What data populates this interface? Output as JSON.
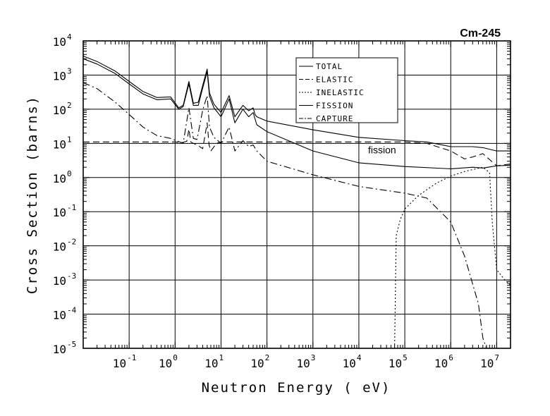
{
  "chart_data": {
    "type": "line",
    "title": "Cm-245",
    "xlabel": "Neutron Energy ( eV)",
    "ylabel": "Cross Section (barns)",
    "x_scale": "log",
    "y_scale": "log",
    "xlim": [
      0.01,
      20000000
    ],
    "ylim": [
      1e-05,
      10000
    ],
    "grid": true,
    "legend_position": "top-center",
    "x_ticks": [
      {
        "base": "10",
        "exp": "-1"
      },
      {
        "base": "10",
        "exp": "0"
      },
      {
        "base": "10",
        "exp": "1"
      },
      {
        "base": "10",
        "exp": "2"
      },
      {
        "base": "10",
        "exp": "3"
      },
      {
        "base": "10",
        "exp": "4"
      },
      {
        "base": "10",
        "exp": "5"
      },
      {
        "base": "10",
        "exp": "6"
      },
      {
        "base": "10",
        "exp": "7"
      }
    ],
    "y_ticks": [
      {
        "base": "10",
        "exp": "4"
      },
      {
        "base": "10",
        "exp": "3"
      },
      {
        "base": "10",
        "exp": "2"
      },
      {
        "base": "10",
        "exp": "1"
      },
      {
        "base": "10",
        "exp": "0"
      },
      {
        "base": "10",
        "exp": "-1"
      },
      {
        "base": "10",
        "exp": "-2"
      },
      {
        "base": "10",
        "exp": "-3"
      },
      {
        "base": "10",
        "exp": "-4"
      },
      {
        "base": "10",
        "exp": "-5"
      }
    ],
    "annotations": [
      {
        "text": "fission",
        "x": 30000,
        "y": 6.5
      }
    ],
    "series": [
      {
        "name": "TOTAL",
        "style": "solid",
        "points": [
          [
            0.01,
            3600
          ],
          [
            0.02,
            2500
          ],
          [
            0.05,
            1300
          ],
          [
            0.1,
            650
          ],
          [
            0.2,
            330
          ],
          [
            0.4,
            220
          ],
          [
            0.8,
            230
          ],
          [
            1.2,
            110
          ],
          [
            1.5,
            130
          ],
          [
            2,
            650
          ],
          [
            2.5,
            150
          ],
          [
            3.2,
            160
          ],
          [
            4,
            500
          ],
          [
            5,
            1500
          ],
          [
            5.6,
            300
          ],
          [
            7,
            140
          ],
          [
            10,
            80
          ],
          [
            15,
            250
          ],
          [
            20,
            60
          ],
          [
            30,
            130
          ],
          [
            40,
            90
          ],
          [
            50,
            110
          ],
          [
            55,
            70
          ],
          [
            60,
            60
          ],
          [
            100,
            45
          ],
          [
            1000,
            25
          ],
          [
            10000,
            15
          ],
          [
            100000,
            12
          ],
          [
            300000,
            11
          ],
          [
            1000000,
            8
          ],
          [
            3000000,
            8
          ],
          [
            5000000,
            7.5
          ],
          [
            10000000,
            6
          ],
          [
            20000000,
            6
          ]
        ]
      },
      {
        "name": "ELASTIC",
        "style": "dashed",
        "points": [
          [
            0.01,
            11
          ],
          [
            0.1,
            11
          ],
          [
            1,
            11
          ],
          [
            1.4,
            10.5
          ],
          [
            1.8,
            11.5
          ],
          [
            2,
            26
          ],
          [
            2.2,
            11
          ],
          [
            2.5,
            10
          ],
          [
            3,
            9
          ],
          [
            4,
            7
          ],
          [
            5,
            40
          ],
          [
            5.5,
            9
          ],
          [
            6,
            6
          ],
          [
            8,
            10
          ],
          [
            10,
            11
          ],
          [
            100,
            11
          ],
          [
            1000,
            11
          ],
          [
            10000,
            11
          ],
          [
            100000,
            11
          ],
          [
            300000,
            10
          ],
          [
            1000000,
            6
          ],
          [
            2000000,
            3.5
          ],
          [
            3000000,
            4
          ],
          [
            5000000,
            5
          ],
          [
            10000000,
            2.2
          ],
          [
            20000000,
            2.5
          ]
        ]
      },
      {
        "name": "INELASTIC",
        "style": "dotted",
        "points": [
          [
            60000,
            1e-05
          ],
          [
            65000,
            0.02
          ],
          [
            80000,
            0.06
          ],
          [
            100000,
            0.12
          ],
          [
            200000,
            0.3
          ],
          [
            500000,
            0.7
          ],
          [
            1000000,
            1.1
          ],
          [
            2000000,
            1.5
          ],
          [
            5000000,
            2
          ],
          [
            7000000,
            1.4
          ],
          [
            8000000,
            0.05
          ],
          [
            10000000,
            0.002
          ],
          [
            15000000,
            0.001
          ],
          [
            20000000,
            0.0007
          ]
        ]
      },
      {
        "name": "FISSION",
        "style": "solid",
        "points": [
          [
            0.01,
            3000
          ],
          [
            0.02,
            2100
          ],
          [
            0.05,
            1100
          ],
          [
            0.1,
            550
          ],
          [
            0.2,
            280
          ],
          [
            0.4,
            190
          ],
          [
            0.8,
            200
          ],
          [
            1.2,
            100
          ],
          [
            1.5,
            120
          ],
          [
            2,
            550
          ],
          [
            2.5,
            130
          ],
          [
            3.2,
            130
          ],
          [
            4,
            420
          ],
          [
            5,
            1250
          ],
          [
            5.6,
            240
          ],
          [
            7,
            110
          ],
          [
            10,
            60
          ],
          [
            15,
            200
          ],
          [
            20,
            40
          ],
          [
            30,
            100
          ],
          [
            40,
            60
          ],
          [
            50,
            80
          ],
          [
            60,
            35
          ],
          [
            100,
            22
          ],
          [
            1000,
            6
          ],
          [
            10000,
            2.7
          ],
          [
            100000,
            2.1
          ],
          [
            1000000,
            1.8
          ],
          [
            3000000,
            2
          ],
          [
            5000000,
            1.9
          ],
          [
            10000000,
            2.2
          ],
          [
            20000000,
            2.3
          ]
        ]
      },
      {
        "name": "CAPTURE",
        "style": "dashdot",
        "points": [
          [
            0.01,
            600
          ],
          [
            0.02,
            400
          ],
          [
            0.05,
            160
          ],
          [
            0.1,
            70
          ],
          [
            0.2,
            30
          ],
          [
            0.4,
            17
          ],
          [
            0.8,
            14
          ],
          [
            1.5,
            10
          ],
          [
            2,
            110
          ],
          [
            2.5,
            14
          ],
          [
            3,
            13
          ],
          [
            4,
            95
          ],
          [
            5,
            250
          ],
          [
            5.6,
            30
          ],
          [
            7,
            15
          ],
          [
            10,
            10
          ],
          [
            15,
            30
          ],
          [
            20,
            6
          ],
          [
            30,
            12
          ],
          [
            40,
            8
          ],
          [
            50,
            9
          ],
          [
            60,
            6
          ],
          [
            100,
            3
          ],
          [
            1000,
            1.2
          ],
          [
            10000,
            0.55
          ],
          [
            50000,
            0.4
          ],
          [
            100000,
            0.35
          ],
          [
            300000,
            0.25
          ],
          [
            1000000,
            0.05
          ],
          [
            2000000,
            0.005
          ],
          [
            4000000,
            0.0002
          ],
          [
            5000000,
            2e-05
          ],
          [
            6000000,
            1e-05
          ]
        ]
      }
    ]
  }
}
